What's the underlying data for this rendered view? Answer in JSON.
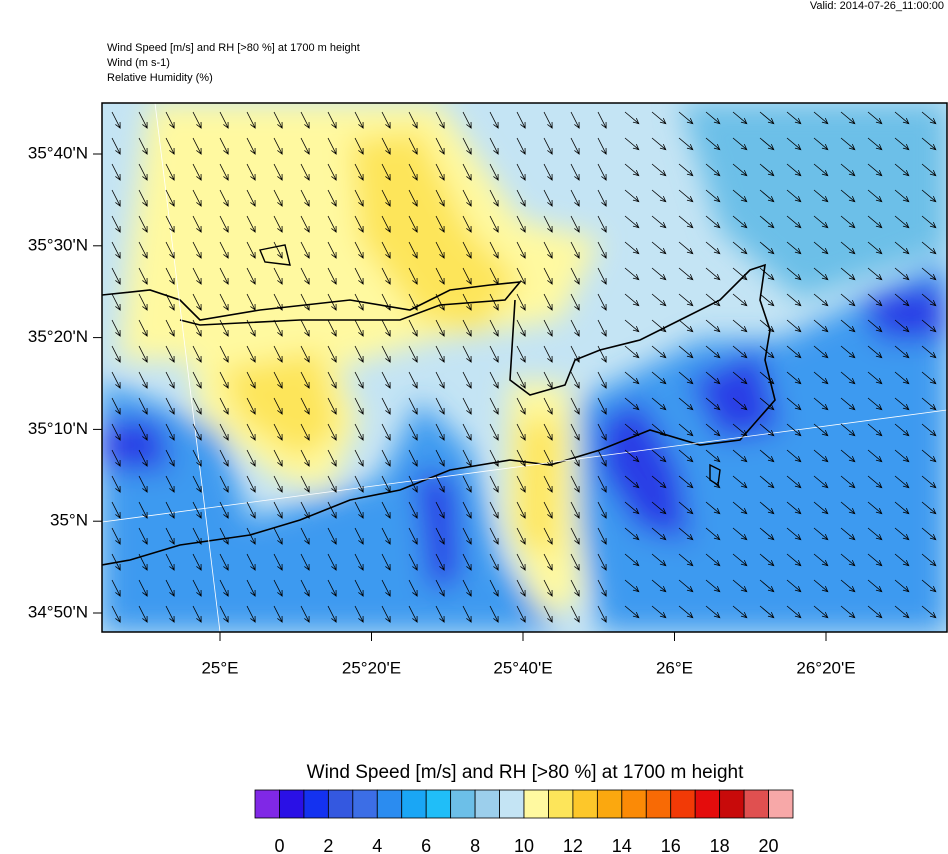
{
  "header": {
    "valid": "Valid: 2014-07-26_11:00:00",
    "title_lines": [
      "Wind Speed [m/s] and RH [>80 %] at 1700 m height",
      "Wind   (m s-1)",
      "Relative Humidity   (%)"
    ]
  },
  "map": {
    "lat_labels": [
      "35°40'N",
      "35°30'N",
      "35°20'N",
      "35°10'N",
      "35°N",
      "34°50'N"
    ],
    "lon_labels": [
      "25°E",
      "25°20'E",
      "25°40'E",
      "26°E",
      "26°20'E"
    ]
  },
  "colorbar": {
    "title": "Wind Speed [m/s] and RH [>80 %] at 1700 m height",
    "colors": [
      "#8028e6",
      "#2a10e6",
      "#1432f0",
      "#3458e0",
      "#3c6ee6",
      "#2b8cf0",
      "#1aa6f5",
      "#20bef8",
      "#6cbfe8",
      "#9ccfec",
      "#c4e4f4",
      "#fff9a0",
      "#fde55a",
      "#fdc72a",
      "#fba80f",
      "#fb8a06",
      "#f86a05",
      "#f23a06",
      "#e40c0c",
      "#c80a0a",
      "#e05050",
      "#f7a8a8"
    ],
    "labels": [
      0,
      2,
      4,
      6,
      8,
      10,
      12,
      14,
      16,
      18,
      20
    ]
  }
}
